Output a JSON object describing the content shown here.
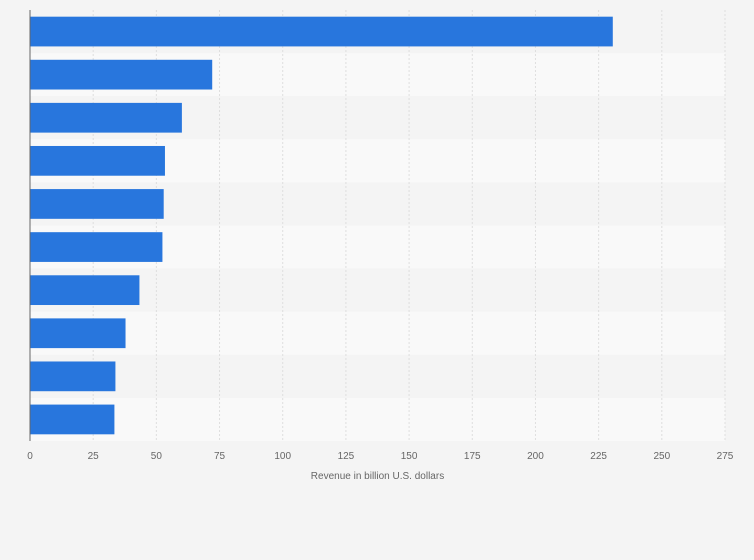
{
  "chart_data": {
    "type": "bar",
    "orientation": "horizontal",
    "title": "",
    "xlabel": "Revenue in billion U.S. dollars",
    "ylabel": "",
    "xlim": [
      0,
      275
    ],
    "x_ticks": [
      "0",
      "25",
      "50",
      "75",
      "100",
      "125",
      "150",
      "175",
      "200",
      "225",
      "250",
      "275"
    ],
    "categories": [
      "",
      "",
      "",
      "",
      "",
      "",
      "",
      "",
      "",
      ""
    ],
    "values": [
      230.6,
      72.1,
      60.1,
      53.4,
      52.9,
      52.4,
      43.3,
      37.8,
      33.8,
      33.4
    ],
    "grid": true,
    "legend": "none",
    "colors": {
      "bar": "#2876dd",
      "grid": "#dedede",
      "axis": "#666666",
      "background": "#f4f4f4",
      "band_light": "#f9f9f9",
      "band_dark": "#f4f4f4"
    }
  }
}
